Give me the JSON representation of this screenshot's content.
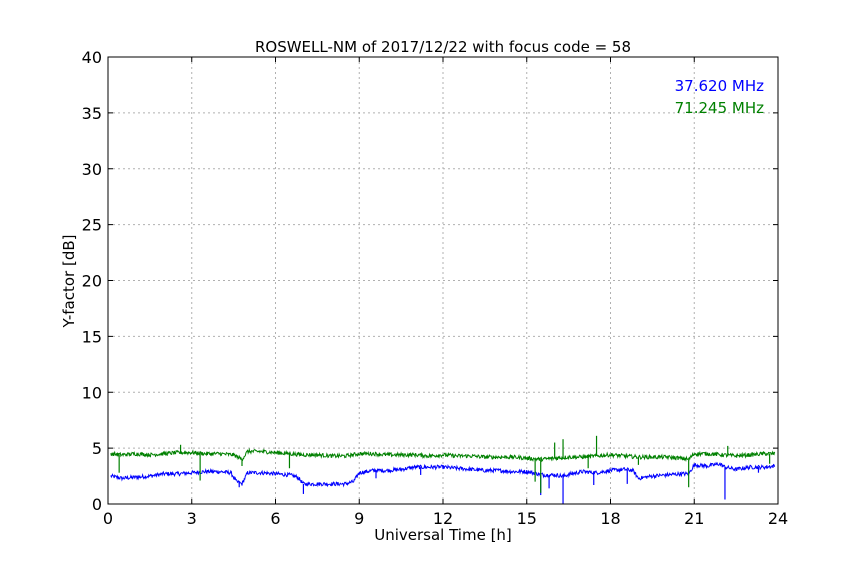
{
  "chart_data": {
    "type": "line",
    "title": "ROSWELL-NM of 2017/12/22 with focus code = 58",
    "xlabel": "Universal Time [h]",
    "ylabel": "Y-factor [dB]",
    "xlim": [
      0,
      24
    ],
    "ylim": [
      0,
      40
    ],
    "xticks": [
      0,
      3,
      6,
      9,
      12,
      15,
      18,
      21,
      24
    ],
    "yticks": [
      0,
      5,
      10,
      15,
      20,
      25,
      30,
      35,
      40
    ],
    "grid": true,
    "legend_placement": "top-right",
    "series": [
      {
        "name": "37.620 MHz",
        "color": "#0000ff",
        "points": [
          [
            0.1,
            2.5
          ],
          [
            0.5,
            2.3
          ],
          [
            1.0,
            2.4
          ],
          [
            1.5,
            2.5
          ],
          [
            2.0,
            2.7
          ],
          [
            2.5,
            2.7
          ],
          [
            3.0,
            2.8
          ],
          [
            3.5,
            2.9
          ],
          [
            4.0,
            2.9
          ],
          [
            4.4,
            2.8
          ],
          [
            4.6,
            2.0
          ],
          [
            4.8,
            1.8
          ],
          [
            5.0,
            2.8
          ],
          [
            5.5,
            2.8
          ],
          [
            6.0,
            2.7
          ],
          [
            6.5,
            2.6
          ],
          [
            6.8,
            2.4
          ],
          [
            7.0,
            1.8
          ],
          [
            7.5,
            1.8
          ],
          [
            8.0,
            1.8
          ],
          [
            8.5,
            1.8
          ],
          [
            8.8,
            2.0
          ],
          [
            9.0,
            2.8
          ],
          [
            9.5,
            3.0
          ],
          [
            10.0,
            3.0
          ],
          [
            10.5,
            3.1
          ],
          [
            11.0,
            3.3
          ],
          [
            11.5,
            3.3
          ],
          [
            12.0,
            3.3
          ],
          [
            12.5,
            3.2
          ],
          [
            13.0,
            3.1
          ],
          [
            13.5,
            3.0
          ],
          [
            14.0,
            3.0
          ],
          [
            14.5,
            2.9
          ],
          [
            15.0,
            2.9
          ],
          [
            15.4,
            2.7
          ],
          [
            15.6,
            2.6
          ],
          [
            16.0,
            2.6
          ],
          [
            16.3,
            2.5
          ],
          [
            16.6,
            2.7
          ],
          [
            17.0,
            2.9
          ],
          [
            17.5,
            2.8
          ],
          [
            18.0,
            3.0
          ],
          [
            18.5,
            3.1
          ],
          [
            18.8,
            3.0
          ],
          [
            19.0,
            2.3
          ],
          [
            19.5,
            2.5
          ],
          [
            20.0,
            2.6
          ],
          [
            20.5,
            2.7
          ],
          [
            20.8,
            2.7
          ],
          [
            21.0,
            3.5
          ],
          [
            21.5,
            3.4
          ],
          [
            21.9,
            3.6
          ],
          [
            22.1,
            3.3
          ],
          [
            22.5,
            3.1
          ],
          [
            23.0,
            3.3
          ],
          [
            23.5,
            3.3
          ],
          [
            23.9,
            3.4
          ]
        ],
        "spikes": [
          [
            4.7,
            1.5
          ],
          [
            7.0,
            0.9
          ],
          [
            9.6,
            2.3
          ],
          [
            11.2,
            2.6
          ],
          [
            15.5,
            0.8
          ],
          [
            15.8,
            1.4
          ],
          [
            16.3,
            0.0
          ],
          [
            17.4,
            1.7
          ],
          [
            18.6,
            1.8
          ],
          [
            22.1,
            0.4
          ],
          [
            23.3,
            2.8
          ]
        ]
      },
      {
        "name": "71.245 MHz",
        "color": "#008000",
        "points": [
          [
            0.1,
            4.5
          ],
          [
            0.5,
            4.4
          ],
          [
            1.0,
            4.5
          ],
          [
            1.5,
            4.4
          ],
          [
            2.0,
            4.5
          ],
          [
            2.5,
            4.6
          ],
          [
            3.0,
            4.6
          ],
          [
            3.5,
            4.5
          ],
          [
            4.0,
            4.5
          ],
          [
            4.5,
            4.4
          ],
          [
            4.8,
            4.0
          ],
          [
            5.0,
            4.7
          ],
          [
            5.5,
            4.7
          ],
          [
            6.0,
            4.6
          ],
          [
            6.5,
            4.5
          ],
          [
            7.0,
            4.4
          ],
          [
            7.5,
            4.4
          ],
          [
            8.0,
            4.3
          ],
          [
            8.5,
            4.3
          ],
          [
            9.0,
            4.5
          ],
          [
            9.5,
            4.5
          ],
          [
            10.0,
            4.4
          ],
          [
            10.5,
            4.4
          ],
          [
            11.0,
            4.4
          ],
          [
            11.5,
            4.3
          ],
          [
            12.0,
            4.4
          ],
          [
            12.5,
            4.3
          ],
          [
            13.0,
            4.3
          ],
          [
            13.5,
            4.2
          ],
          [
            14.0,
            4.2
          ],
          [
            14.5,
            4.2
          ],
          [
            15.0,
            4.1
          ],
          [
            15.5,
            4.0
          ],
          [
            16.0,
            4.1
          ],
          [
            16.5,
            4.2
          ],
          [
            17.0,
            4.2
          ],
          [
            17.5,
            4.3
          ],
          [
            18.0,
            4.4
          ],
          [
            18.5,
            4.3
          ],
          [
            19.0,
            4.2
          ],
          [
            19.5,
            4.2
          ],
          [
            20.0,
            4.2
          ],
          [
            20.5,
            4.1
          ],
          [
            20.8,
            4.0
          ],
          [
            21.0,
            4.5
          ],
          [
            21.5,
            4.5
          ],
          [
            22.0,
            4.4
          ],
          [
            22.5,
            4.3
          ],
          [
            23.0,
            4.4
          ],
          [
            23.5,
            4.5
          ],
          [
            23.9,
            4.5
          ]
        ],
        "spikes": [
          [
            0.4,
            2.8
          ],
          [
            2.6,
            5.3
          ],
          [
            3.3,
            2.1
          ],
          [
            4.8,
            3.4
          ],
          [
            6.5,
            3.2
          ],
          [
            15.3,
            2.0
          ],
          [
            15.5,
            1.0
          ],
          [
            16.0,
            5.5
          ],
          [
            16.3,
            5.8
          ],
          [
            17.2,
            3.2
          ],
          [
            17.5,
            6.1
          ],
          [
            19.0,
            3.5
          ],
          [
            20.8,
            1.5
          ],
          [
            22.2,
            5.2
          ],
          [
            23.7,
            3.6
          ]
        ]
      }
    ]
  }
}
